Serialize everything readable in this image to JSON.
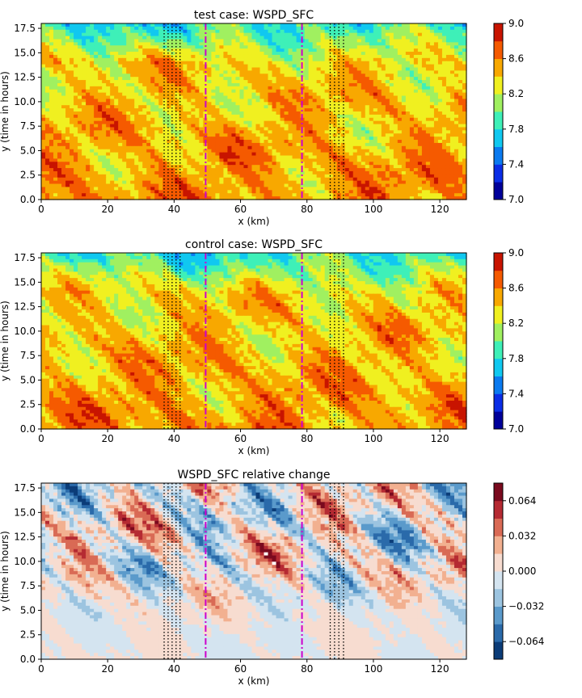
{
  "chart_data": [
    {
      "type": "heatmap",
      "title": "test case: WSPD_SFC",
      "xlabel": "x (km)",
      "ylabel": "y (time in hours)",
      "xlim": [
        0,
        128
      ],
      "ylim": [
        0,
        18
      ],
      "x_ticks": [
        0,
        20,
        40,
        60,
        80,
        100,
        120
      ],
      "y_ticks": [
        0.0,
        2.5,
        5.0,
        7.5,
        10.0,
        12.5,
        15.0,
        17.5
      ],
      "y_tick_labels": [
        "0.0",
        "2.5",
        "5.0",
        "7.5",
        "10.0",
        "12.5",
        "15.0",
        "17.5"
      ],
      "colorbar": {
        "vmin": 7.0,
        "vmax": 9.0,
        "levels": [
          7.0,
          7.2,
          7.4,
          7.6,
          7.8,
          8.0,
          8.2,
          8.4,
          8.6,
          8.8,
          9.0
        ],
        "colors": [
          "#00009a",
          "#0a2de6",
          "#0a7af0",
          "#10c8f0",
          "#3ef0b8",
          "#a0f060",
          "#f0f020",
          "#f8a800",
          "#f55a00",
          "#c81400"
        ],
        "tick_values": [
          7.0,
          7.4,
          7.8,
          8.2,
          8.6,
          9.0
        ],
        "tick_labels": [
          "7.0",
          "7.4",
          "7.8",
          "8.2",
          "8.6",
          "9.0"
        ]
      },
      "field": {
        "kind": "wind",
        "base": 8.45,
        "amp": 0.28,
        "seed": 11
      },
      "dotted_lines_x": [
        37,
        38.2,
        39.4,
        40.6,
        41.8,
        87,
        88.3,
        89.6,
        91
      ],
      "dashdot_lines_x": [
        49.5,
        78.5
      ]
    },
    {
      "type": "heatmap",
      "title": "control case: WSPD_SFC",
      "xlabel": "x (km)",
      "ylabel": "y (time in hours)",
      "xlim": [
        0,
        128
      ],
      "ylim": [
        0,
        18
      ],
      "x_ticks": [
        0,
        20,
        40,
        60,
        80,
        100,
        120
      ],
      "y_ticks": [
        0.0,
        2.5,
        5.0,
        7.5,
        10.0,
        12.5,
        15.0,
        17.5
      ],
      "y_tick_labels": [
        "0.0",
        "2.5",
        "5.0",
        "7.5",
        "10.0",
        "12.5",
        "15.0",
        "17.5"
      ],
      "colorbar": {
        "vmin": 7.0,
        "vmax": 9.0,
        "levels": [
          7.0,
          7.2,
          7.4,
          7.6,
          7.8,
          8.0,
          8.2,
          8.4,
          8.6,
          8.8,
          9.0
        ],
        "colors": [
          "#00009a",
          "#0a2de6",
          "#0a7af0",
          "#10c8f0",
          "#3ef0b8",
          "#a0f060",
          "#f0f020",
          "#f8a800",
          "#f55a00",
          "#c81400"
        ],
        "tick_values": [
          7.0,
          7.4,
          7.8,
          8.2,
          8.6,
          9.0
        ],
        "tick_labels": [
          "7.0",
          "7.4",
          "7.8",
          "8.2",
          "8.6",
          "9.0"
        ]
      },
      "field": {
        "kind": "wind",
        "base": 8.45,
        "amp": 0.28,
        "seed": 23
      },
      "dotted_lines_x": [
        37,
        38.2,
        39.4,
        40.6,
        41.8,
        87,
        88.3,
        89.6,
        91
      ],
      "dashdot_lines_x": [
        49.5,
        78.5
      ]
    },
    {
      "type": "heatmap",
      "title": "WSPD_SFC relative change",
      "xlabel": "x (km)",
      "ylabel": "y (time in hours)",
      "xlim": [
        0,
        128
      ],
      "ylim": [
        0,
        18
      ],
      "x_ticks": [
        0,
        20,
        40,
        60,
        80,
        100,
        120
      ],
      "y_ticks": [
        0.0,
        2.5,
        5.0,
        7.5,
        10.0,
        12.5,
        15.0,
        17.5
      ],
      "y_tick_labels": [
        "0.0",
        "2.5",
        "5.0",
        "7.5",
        "10.0",
        "12.5",
        "15.0",
        "17.5"
      ],
      "colorbar": {
        "vmin": -0.08,
        "vmax": 0.08,
        "levels": [
          -0.08,
          -0.064,
          -0.048,
          -0.032,
          -0.016,
          0.0,
          0.016,
          0.032,
          0.048,
          0.064,
          0.08
        ],
        "colors": [
          "#0b3c78",
          "#2a6aaa",
          "#5a9acb",
          "#9cc4e0",
          "#d4e4f0",
          "#f7dcd0",
          "#f2b090",
          "#d96a55",
          "#b52a32",
          "#7a0a1e"
        ],
        "tick_values": [
          -0.064,
          -0.032,
          0.0,
          0.032,
          0.064
        ],
        "tick_labels": [
          "−0.064",
          "−0.032",
          "0.000",
          "0.032",
          "0.064"
        ]
      },
      "field": {
        "kind": "diff",
        "amp": 0.05,
        "seed": 37
      },
      "dotted_lines_x": [
        37,
        38.2,
        39.4,
        40.6,
        41.8,
        87,
        88.3,
        89.6,
        91
      ],
      "dashdot_lines_x": [
        49.5,
        78.5
      ]
    }
  ]
}
